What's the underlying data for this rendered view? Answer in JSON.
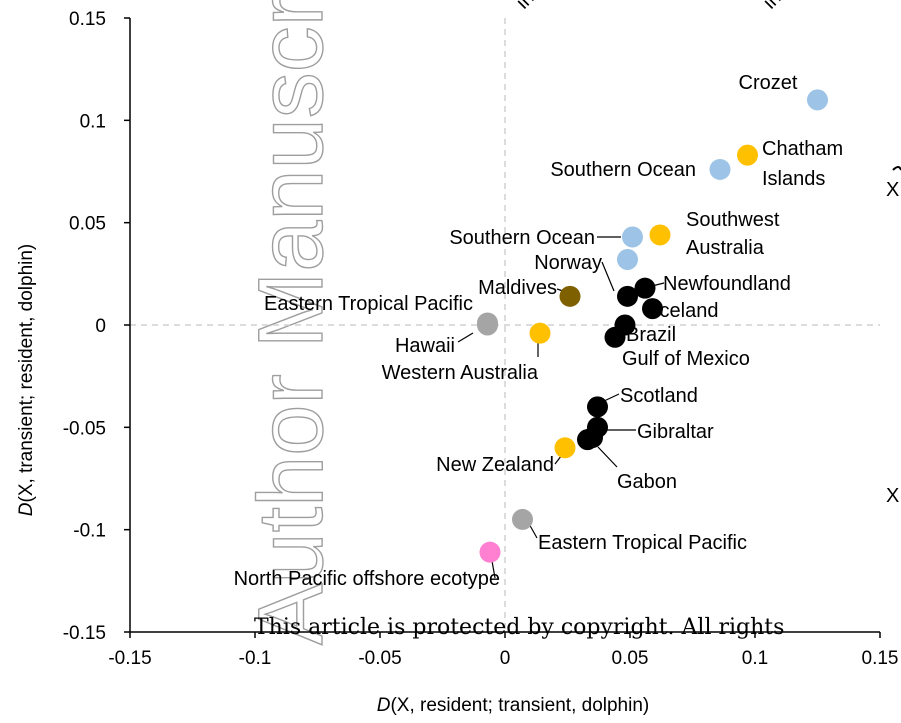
{
  "chart_data": {
    "type": "scatter",
    "xlabel_prefix": "D",
    "xlabel_rest": "(X, resident; transient, dolphin)",
    "ylabel_prefix": "D",
    "ylabel_rest": "(X, transient; resident, dolphin)",
    "xlim": [
      -0.15,
      0.15
    ],
    "ylim": [
      -0.15,
      0.15
    ],
    "xticks": [
      -0.15,
      -0.1,
      -0.05,
      0,
      0.05,
      0.1,
      0.15
    ],
    "yticks": [
      -0.15,
      -0.1,
      -0.05,
      0,
      0.05,
      0.1,
      0.15
    ],
    "xtick_labels": [
      "-0.15",
      "-0.1",
      "-0.05",
      "0",
      "0.05",
      "0.1",
      "0.15"
    ],
    "ytick_labels": [
      "-0.15",
      "-0.1",
      "-0.05",
      "0",
      "0.05",
      "0.1",
      "0.15"
    ],
    "reference_lines": {
      "x": 0,
      "y": 0,
      "style": "dashed",
      "color": "#d0d0d0"
    },
    "grid": false,
    "group_colors": {
      "black": "#000000",
      "light-blue": "#9dc3e6",
      "yellow": "#ffc000",
      "brown": "#7f6000",
      "grey": "#a5a5a5",
      "pink": "#ff7fd0"
    },
    "points": [
      {
        "label": "Crozet",
        "x": 0.125,
        "y": 0.11,
        "group": "light-blue"
      },
      {
        "label": "Southern Ocean",
        "x": 0.086,
        "y": 0.076,
        "group": "light-blue"
      },
      {
        "label": "Chatham Islands",
        "x": 0.097,
        "y": 0.083,
        "group": "yellow"
      },
      {
        "label": "Southwest Australia",
        "x": 0.062,
        "y": 0.044,
        "group": "yellow"
      },
      {
        "label": "Southern Ocean",
        "x": 0.051,
        "y": 0.043,
        "group": "light-blue"
      },
      {
        "label": "",
        "x": 0.049,
        "y": 0.032,
        "group": "light-blue"
      },
      {
        "label": "Norway",
        "x": 0.049,
        "y": 0.014,
        "group": "black"
      },
      {
        "label": "Newfoundland",
        "x": 0.056,
        "y": 0.018,
        "group": "black"
      },
      {
        "label": "Iceland",
        "x": 0.059,
        "y": 0.008,
        "group": "black"
      },
      {
        "label": "Brazil",
        "x": 0.048,
        "y": 0.0,
        "group": "black"
      },
      {
        "label": "Gulf of Mexico",
        "x": 0.044,
        "y": -0.006,
        "group": "black"
      },
      {
        "label": "Maldives",
        "x": 0.026,
        "y": 0.014,
        "group": "brown"
      },
      {
        "label": "Eastern Tropical Pacific",
        "x": -0.007,
        "y": 0.001,
        "group": "grey"
      },
      {
        "label": "Hawaii",
        "x": -0.007,
        "y": 0.0,
        "group": "grey"
      },
      {
        "label": "Western Australia",
        "x": 0.014,
        "y": -0.004,
        "group": "yellow"
      },
      {
        "label": "Scotland",
        "x": 0.037,
        "y": -0.04,
        "group": "black"
      },
      {
        "label": "Gibraltar",
        "x": 0.037,
        "y": -0.05,
        "group": "black"
      },
      {
        "label": "",
        "x": 0.035,
        "y": -0.055,
        "group": "black"
      },
      {
        "label": "Gabon",
        "x": 0.033,
        "y": -0.056,
        "group": "black"
      },
      {
        "label": "New Zealand",
        "x": 0.024,
        "y": -0.06,
        "group": "yellow"
      },
      {
        "label": "Eastern Tropical Pacific",
        "x": 0.007,
        "y": -0.095,
        "group": "grey"
      },
      {
        "label": "North Pacific offshore ecotype",
        "x": -0.006,
        "y": -0.111,
        "group": "pink"
      }
    ]
  },
  "overlay": {
    "watermark": "Author Manuscript",
    "notice": "This article is protected by copyright. All rights",
    "edge_fragments": [
      {
        "id": "frag-top-1",
        "text": "in"
      },
      {
        "id": "frag-top-2",
        "text": "in"
      },
      {
        "id": "frag-right-1",
        "text": "X"
      },
      {
        "id": "frag-right-2",
        "text": "X"
      }
    ]
  }
}
